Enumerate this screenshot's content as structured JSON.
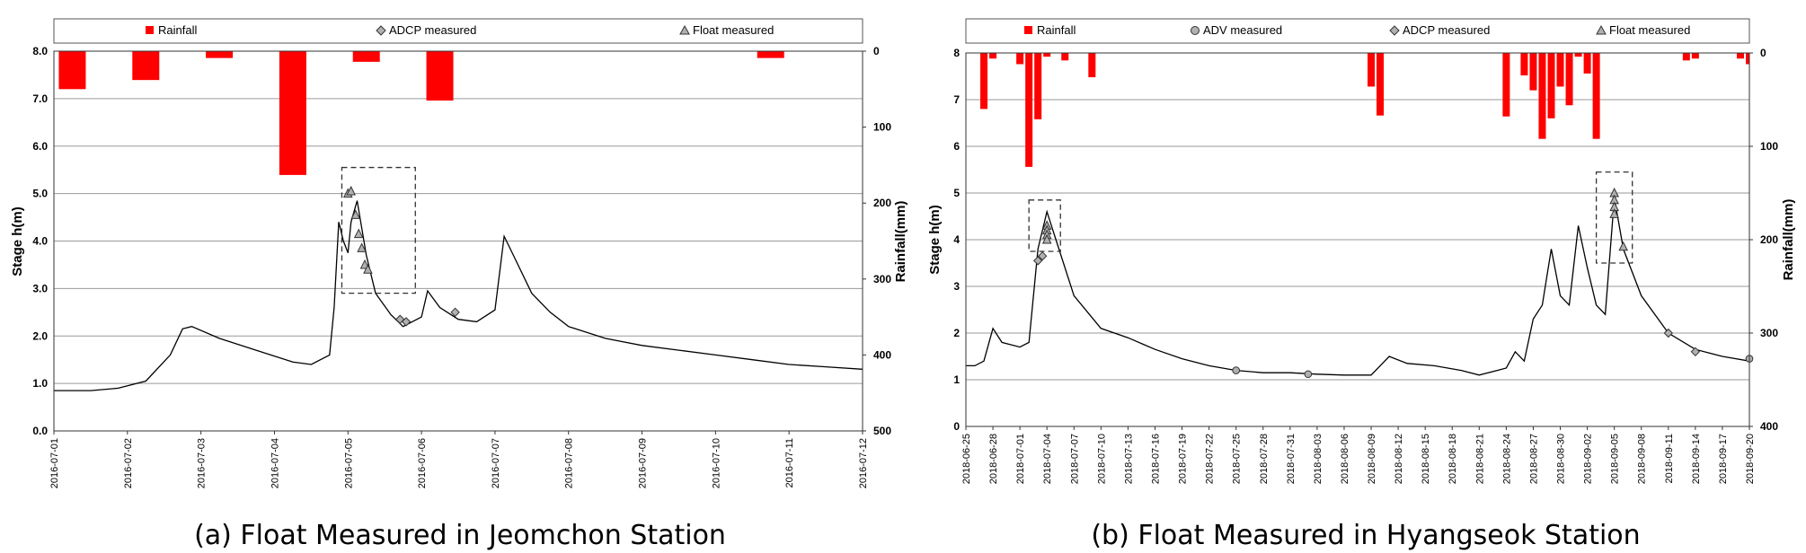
{
  "chart_data": [
    {
      "type": "line",
      "caption": "(a) Float Measured in Jeomchon Station",
      "ylabel": "Stage h(m)",
      "y2label": "Rainfall(mm)",
      "ylim": [
        0,
        8
      ],
      "yticks": [
        "0.0",
        "1.0",
        "2.0",
        "3.0",
        "4.0",
        "5.0",
        "6.0",
        "7.0",
        "8.0"
      ],
      "y2lim": [
        0,
        500
      ],
      "y2ticks": [
        "0",
        "100",
        "200",
        "300",
        "400",
        "500"
      ],
      "xlim": [
        "2016-07-01",
        "2016-07-12"
      ],
      "xticks": [
        "2016-07-01",
        "2016-07-02",
        "2016-07-03",
        "2016-07-04",
        "2016-07-05",
        "2016-07-06",
        "2016-07-07",
        "2016-07-08",
        "2016-07-09",
        "2016-07-10",
        "2016-07-11",
        "2016-07-12"
      ],
      "grid": true,
      "legend_position": "top",
      "legend": [
        "Rainfall",
        "ADCP measured",
        "Float measured"
      ],
      "colors": {
        "rainfall": "#ff0000",
        "stage": "#000000",
        "marker": "#b0b0b0"
      },
      "rainfall": {
        "x": [
          "2016-07-01 06:00",
          "2016-07-02 06:00",
          "2016-07-03 06:00",
          "2016-07-04 06:00",
          "2016-07-05 06:00",
          "2016-07-06 06:00",
          "2016-07-10 18:00"
        ],
        "values": [
          50,
          38,
          9,
          163,
          14,
          65,
          9
        ]
      },
      "stage": {
        "x": [
          "2016-07-01 00:00",
          "2016-07-01 12:00",
          "2016-07-01 21:00",
          "2016-07-02 06:00",
          "2016-07-02 14:00",
          "2016-07-02 18:00",
          "2016-07-02 21:00",
          "2016-07-03 06:00",
          "2016-07-03 18:00",
          "2016-07-04 06:00",
          "2016-07-04 12:00",
          "2016-07-04 18:00",
          "2016-07-04 19:30",
          "2016-07-04 21:00",
          "2016-07-04 22:30",
          "2016-07-05 00:00",
          "2016-07-05 01:00",
          "2016-07-05 03:00",
          "2016-07-05 06:00",
          "2016-07-05 09:00",
          "2016-07-05 14:00",
          "2016-07-05 18:00",
          "2016-07-06 00:00",
          "2016-07-06 02:00",
          "2016-07-06 06:00",
          "2016-07-06 12:00",
          "2016-07-06 18:00",
          "2016-07-07 00:00",
          "2016-07-07 03:00",
          "2016-07-07 06:00",
          "2016-07-07 12:00",
          "2016-07-07 18:00",
          "2016-07-08 00:00",
          "2016-07-08 12:00",
          "2016-07-09 00:00",
          "2016-07-09 12:00",
          "2016-07-10 00:00",
          "2016-07-10 12:00",
          "2016-07-11 00:00",
          "2016-07-11 12:00",
          "2016-07-12 00:00"
        ],
        "values": [
          0.85,
          0.85,
          0.9,
          1.05,
          1.6,
          2.15,
          2.2,
          1.95,
          1.7,
          1.45,
          1.4,
          1.6,
          2.6,
          4.4,
          4.0,
          3.75,
          4.4,
          4.85,
          3.7,
          2.9,
          2.45,
          2.2,
          2.4,
          2.95,
          2.6,
          2.35,
          2.3,
          2.55,
          4.1,
          3.7,
          2.9,
          2.5,
          2.2,
          1.95,
          1.8,
          1.7,
          1.6,
          1.5,
          1.4,
          1.35,
          1.3
        ]
      },
      "adcp_measured": {
        "x": [
          "2016-07-05 17:00",
          "2016-07-05 19:00",
          "2016-07-06 11:00"
        ],
        "values": [
          2.35,
          2.3,
          2.5
        ]
      },
      "float_measured": {
        "x": [
          "2016-07-05 00:00",
          "2016-07-05 01:00",
          "2016-07-05 02:30",
          "2016-07-05 03:30",
          "2016-07-05 04:30",
          "2016-07-05 05:30",
          "2016-07-05 06:30"
        ],
        "values": [
          5.0,
          5.05,
          4.55,
          4.15,
          3.85,
          3.5,
          3.4
        ]
      },
      "annotations": [
        {
          "type": "dashed-box",
          "x": [
            "2016-07-04 22:00",
            "2016-07-05 22:00"
          ],
          "y": [
            2.9,
            5.55
          ]
        }
      ]
    },
    {
      "type": "line",
      "caption": "(b) Float Measured in Hyangseok Station",
      "ylabel": "Stage h(m)",
      "y2label": "Rainfall(mm)",
      "ylim": [
        0,
        8
      ],
      "yticks": [
        "0",
        "1",
        "2",
        "3",
        "4",
        "5",
        "6",
        "7",
        "8"
      ],
      "y2lim": [
        0,
        400
      ],
      "y2ticks": [
        "0",
        "100",
        "200",
        "300",
        "400"
      ],
      "xlim": [
        "2018-06-25",
        "2018-09-20"
      ],
      "xticks": [
        "2018-06-25",
        "2018-06-28",
        "2018-07-01",
        "2018-07-04",
        "2018-07-07",
        "2018-07-10",
        "2018-07-13",
        "2018-07-16",
        "2018-07-19",
        "2018-07-22",
        "2018-07-25",
        "2018-07-28",
        "2018-07-31",
        "2018-08-03",
        "2018-08-06",
        "2018-08-09",
        "2018-08-12",
        "2018-08-15",
        "2018-08-18",
        "2018-08-21",
        "2018-08-24",
        "2018-08-27",
        "2018-08-30",
        "2018-09-02",
        "2018-09-05",
        "2018-09-08",
        "2018-09-11",
        "2018-09-14",
        "2018-09-17",
        "2018-09-20"
      ],
      "grid": true,
      "legend_position": "top",
      "legend": [
        "Rainfall",
        "ADV measured",
        "ADCP measured",
        "Float measured"
      ],
      "colors": {
        "rainfall": "#ff0000",
        "stage": "#000000",
        "marker": "#b0b0b0"
      },
      "rainfall": {
        "x": [
          "2018-06-27",
          "2018-06-28",
          "2018-07-01",
          "2018-07-02",
          "2018-07-03",
          "2018-07-04",
          "2018-07-06",
          "2018-07-09",
          "2018-08-09",
          "2018-08-10",
          "2018-08-24",
          "2018-08-26",
          "2018-08-27",
          "2018-08-28",
          "2018-08-29",
          "2018-08-30",
          "2018-08-31",
          "2018-09-01",
          "2018-09-02",
          "2018-09-03",
          "2018-09-13",
          "2018-09-14",
          "2018-09-19",
          "2018-09-20"
        ],
        "values": [
          60,
          6,
          12,
          122,
          71,
          4,
          8,
          26,
          36,
          67,
          68,
          24,
          40,
          92,
          70,
          36,
          56,
          4,
          22,
          92,
          8,
          6,
          6,
          12
        ]
      },
      "stage": {
        "x": [
          "2018-06-25",
          "2018-06-26",
          "2018-06-27",
          "2018-06-28",
          "2018-06-29",
          "2018-07-01",
          "2018-07-02",
          "2018-07-03",
          "2018-07-04",
          "2018-07-05",
          "2018-07-07",
          "2018-07-10",
          "2018-07-13",
          "2018-07-16",
          "2018-07-19",
          "2018-07-22",
          "2018-07-25",
          "2018-07-28",
          "2018-07-31",
          "2018-08-03",
          "2018-08-06",
          "2018-08-09",
          "2018-08-10",
          "2018-08-11",
          "2018-08-13",
          "2018-08-16",
          "2018-08-19",
          "2018-08-21",
          "2018-08-23",
          "2018-08-24",
          "2018-08-25",
          "2018-08-26",
          "2018-08-27",
          "2018-08-28",
          "2018-08-29",
          "2018-08-30",
          "2018-08-31",
          "2018-09-01",
          "2018-09-02",
          "2018-09-03",
          "2018-09-04",
          "2018-09-05",
          "2018-09-06",
          "2018-09-08",
          "2018-09-11",
          "2018-09-14",
          "2018-09-17",
          "2018-09-20"
        ],
        "values": [
          1.3,
          1.3,
          1.4,
          2.1,
          1.8,
          1.7,
          1.8,
          3.8,
          4.6,
          4.0,
          2.8,
          2.1,
          1.9,
          1.65,
          1.45,
          1.3,
          1.2,
          1.15,
          1.15,
          1.12,
          1.1,
          1.1,
          1.3,
          1.5,
          1.35,
          1.3,
          1.2,
          1.1,
          1.2,
          1.25,
          1.6,
          1.4,
          2.3,
          2.6,
          3.8,
          2.8,
          2.6,
          4.3,
          3.4,
          2.6,
          2.4,
          4.9,
          3.8,
          2.8,
          2.0,
          1.65,
          1.5,
          1.4
        ]
      },
      "adv_measured": {
        "x": [
          "2018-07-25",
          "2018-08-02",
          "2018-09-20"
        ],
        "values": [
          1.2,
          1.12,
          1.45
        ]
      },
      "adcp_measured": {
        "x": [
          "2018-07-03",
          "2018-07-03 12:00",
          "2018-09-11",
          "2018-09-14"
        ],
        "values": [
          3.55,
          3.65,
          2.0,
          1.6
        ]
      },
      "float_measured": {
        "x": [
          "2018-07-04",
          "2018-07-04",
          "2018-07-04",
          "2018-07-04",
          "2018-09-05",
          "2018-09-05",
          "2018-09-05",
          "2018-09-05",
          "2018-09-06"
        ],
        "values": [
          4.3,
          4.2,
          4.1,
          4.0,
          5.0,
          4.85,
          4.7,
          4.55,
          3.85
        ]
      },
      "annotations": [
        {
          "type": "dashed-box",
          "x": [
            "2018-07-02",
            "2018-07-05 12:00"
          ],
          "y": [
            3.75,
            4.85
          ]
        },
        {
          "type": "dashed-box",
          "x": [
            "2018-09-03",
            "2018-09-07"
          ],
          "y": [
            3.5,
            5.45
          ]
        }
      ]
    }
  ]
}
